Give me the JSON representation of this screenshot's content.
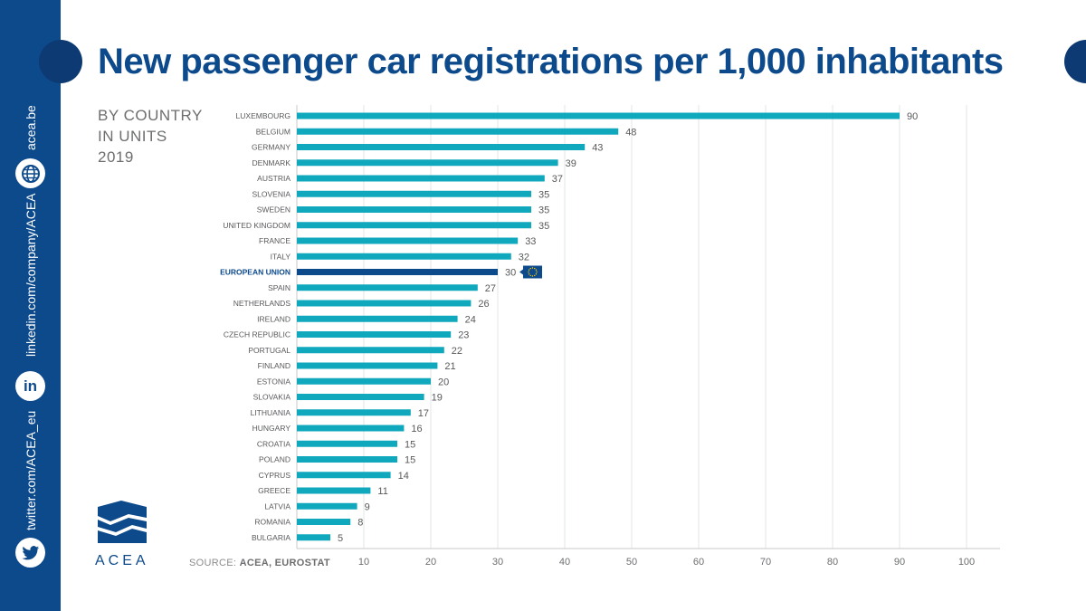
{
  "sidebar": {
    "website": "acea.be",
    "linkedin": "linkedin.com/company/ACEA",
    "twitter": "twitter.com/ACEA_eu"
  },
  "header": {
    "title": "New passenger car registrations per 1,000 inhabitants",
    "subtitle_lines": [
      "BY COUNTRY",
      "IN UNITS",
      "2019"
    ]
  },
  "footer": {
    "source_label": "SOURCE:",
    "source_value": "ACEA, EUROSTAT",
    "logo_text": "ACEA"
  },
  "colors": {
    "bar": "#10a8bd",
    "highlight_bar": "#0d4a8c",
    "brand": "#0d4a8c"
  },
  "chart_data": {
    "type": "bar",
    "orientation": "horizontal",
    "categories": [
      "LUXEMBOURG",
      "BELGIUM",
      "GERMANY",
      "DENMARK",
      "AUSTRIA",
      "SLOVENIA",
      "SWEDEN",
      "UNITED KINGDOM",
      "FRANCE",
      "ITALY",
      "EUROPEAN UNION",
      "SPAIN",
      "NETHERLANDS",
      "IRELAND",
      "CZECH REPUBLIC",
      "PORTUGAL",
      "FINLAND",
      "ESTONIA",
      "SLOVAKIA",
      "LITHUANIA",
      "HUNGARY",
      "CROATIA",
      "POLAND",
      "CYPRUS",
      "GREECE",
      "LATVIA",
      "ROMANIA",
      "BULGARIA"
    ],
    "values": [
      90,
      48,
      43,
      39,
      37,
      35,
      35,
      35,
      33,
      32,
      30,
      27,
      26,
      24,
      23,
      22,
      21,
      20,
      19,
      17,
      16,
      15,
      15,
      14,
      11,
      9,
      8,
      5
    ],
    "highlight": "EUROPEAN UNION",
    "xlim": [
      0,
      105
    ],
    "xticks": [
      10,
      20,
      30,
      40,
      50,
      60,
      70,
      80,
      90,
      100
    ],
    "grid": true
  }
}
